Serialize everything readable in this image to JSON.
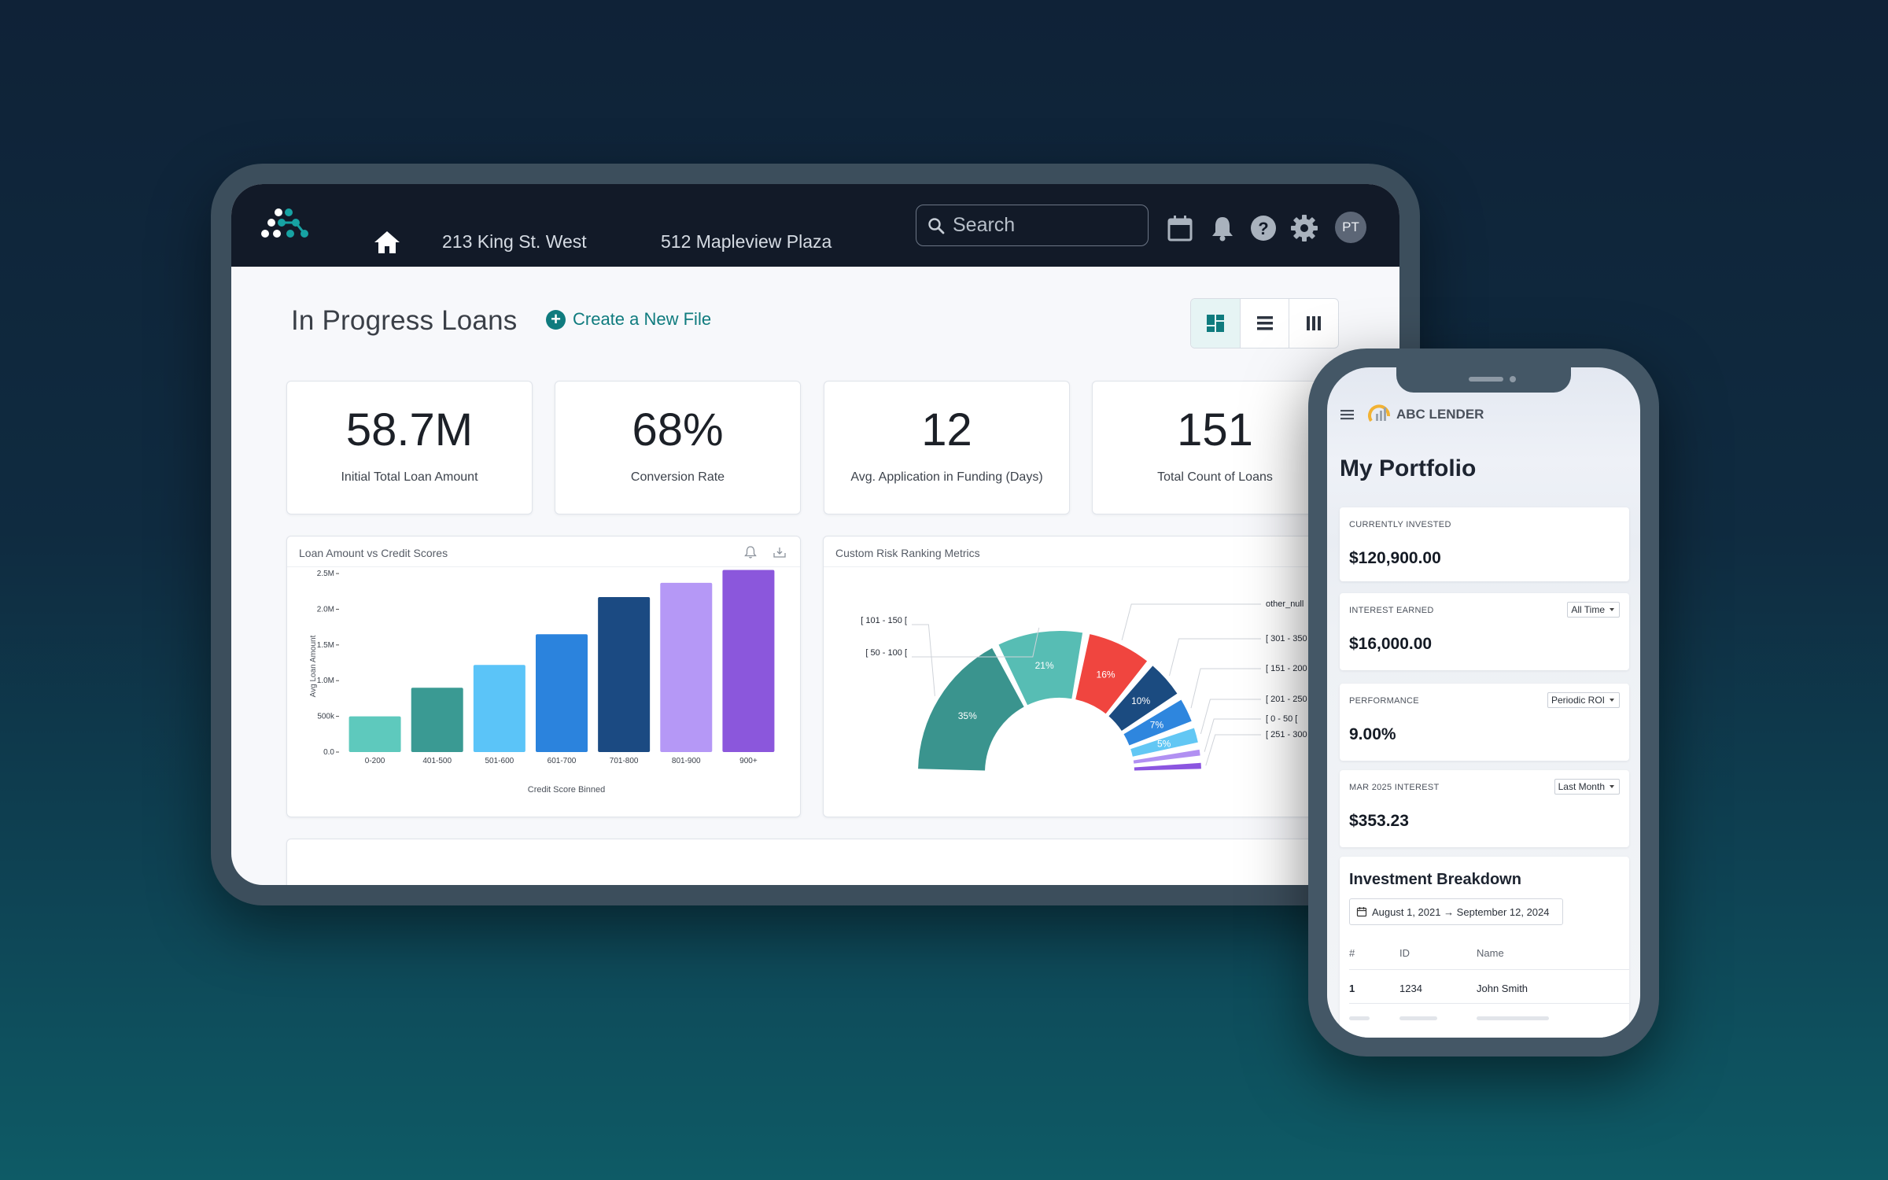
{
  "topbar": {
    "nav_links": [
      "213 King St. West",
      "512 Mapleview Plaza"
    ],
    "search_placeholder": "Search",
    "avatar_initials": "PT"
  },
  "page": {
    "title": "In Progress Loans",
    "create_label": "Create a New File"
  },
  "kpis": [
    {
      "value": "58.7M",
      "label": "Initial Total Loan Amount"
    },
    {
      "value": "68%",
      "label": "Conversion Rate"
    },
    {
      "value": "12",
      "label": "Avg. Application in Funding (Days)"
    },
    {
      "value": "151",
      "label": "Total Count of Loans"
    }
  ],
  "colors": {
    "accent": "#0f7b7e",
    "topbar_bg": "#121a28"
  },
  "chart_data": [
    {
      "type": "bar",
      "title": "Loan Amount vs Credit Scores",
      "xlabel": "Credit Score Binned",
      "ylabel": "Avg Loan Amount",
      "categories": [
        "0-200",
        "401-500",
        "501-600",
        "601-700",
        "701-800",
        "801-900",
        "900+"
      ],
      "values": [
        500000,
        900000,
        1220000,
        1650000,
        2170000,
        2370000,
        2550000
      ],
      "yticks": [
        "0.0",
        "500k",
        "1.0M",
        "1.5M",
        "2.0M",
        "2.5M"
      ],
      "ylim": [
        0,
        2600000
      ],
      "colors": [
        "#5ec9bd",
        "#3a9a93",
        "#5bc4f8",
        "#2b83dd",
        "#1b4a82",
        "#b598f6",
        "#8b57dc"
      ]
    },
    {
      "type": "pie",
      "title": "Custom Risk Ranking Metrics",
      "slices": [
        {
          "label": "[ 101 - 150 [",
          "value": 35,
          "text": "35%",
          "color": "#3a948e"
        },
        {
          "label": "[ 50 - 100 [",
          "value": 21,
          "text": "21%",
          "color": "#57bdb4"
        },
        {
          "label": "other_null",
          "value": 16,
          "text": "16%",
          "color": "#f0453f"
        },
        {
          "label": "[ 301 - 350",
          "value": 10,
          "text": "10%",
          "color": "#1b4b80"
        },
        {
          "label": "[ 151 - 200",
          "value": 7,
          "text": "7%",
          "color": "#2e86de"
        },
        {
          "label": "[ 201 - 250",
          "value": 5,
          "text": "5%",
          "color": "#62c7f4"
        },
        {
          "label": "[ 0 - 50 [",
          "value": 3,
          "text": "",
          "color": "#b190f2"
        },
        {
          "label": "[ 251 - 300",
          "value": 3,
          "text": "",
          "color": "#8b55e0"
        }
      ]
    }
  ],
  "phone": {
    "brand": "ABC LENDER",
    "title": "My Portfolio",
    "cards": [
      {
        "label": "CURRENTLY INVESTED",
        "value": "$120,900.00",
        "select": ""
      },
      {
        "label": "INTEREST EARNED",
        "value": "$16,000.00",
        "select": "All Time"
      },
      {
        "label": "PERFORMANCE",
        "value": "9.00%",
        "select": "Periodic ROI"
      },
      {
        "label": "MAR 2025 INTEREST",
        "value": "$353.23",
        "select": "Last Month"
      }
    ],
    "breakdown": {
      "title": "Investment Breakdown",
      "date_range": "August 1, 2021 → September 12, 2024",
      "columns": [
        "#",
        "ID",
        "Name"
      ],
      "rows": [
        [
          "1",
          "1234",
          "John Smith"
        ]
      ]
    }
  }
}
